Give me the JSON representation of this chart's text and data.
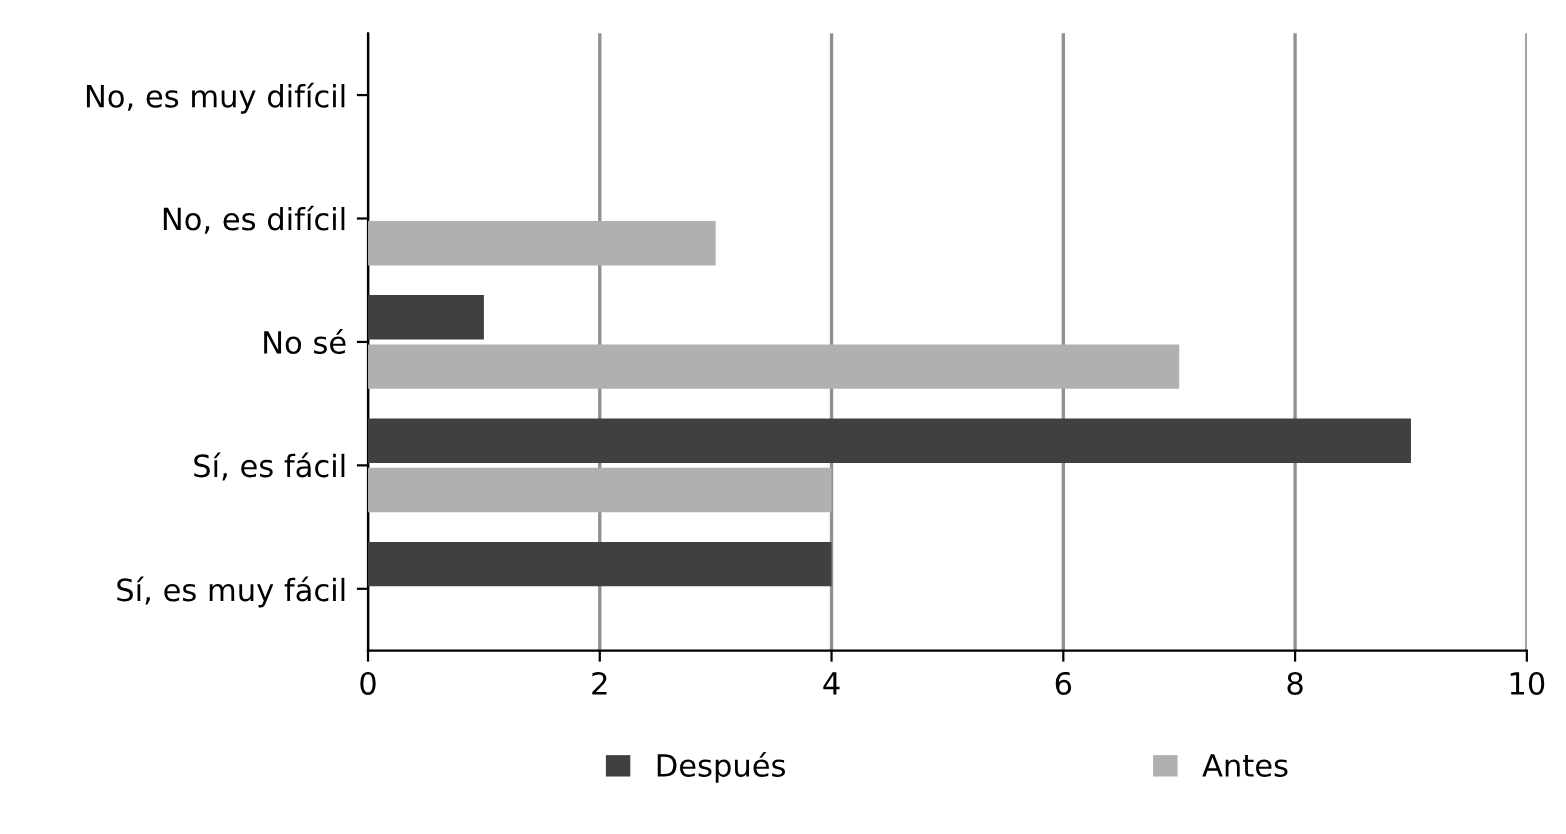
{
  "chart_data": {
    "type": "bar",
    "orientation": "horizontal",
    "categories": [
      "No, es muy difícil",
      "No, es difícil",
      "No sé",
      "Sí, es fácil",
      "Sí, es muy fácil"
    ],
    "series": [
      {
        "name": "Después",
        "color": "#404040",
        "values": [
          0,
          0,
          1,
          9,
          4
        ]
      },
      {
        "name": "Antes",
        "color": "#b0b0b0",
        "values": [
          0,
          3,
          7,
          4,
          0
        ]
      }
    ],
    "xlim": [
      0,
      10
    ],
    "xticks": [
      0,
      2,
      4,
      6,
      8,
      10
    ],
    "grid": "x",
    "legend": "bottom"
  }
}
